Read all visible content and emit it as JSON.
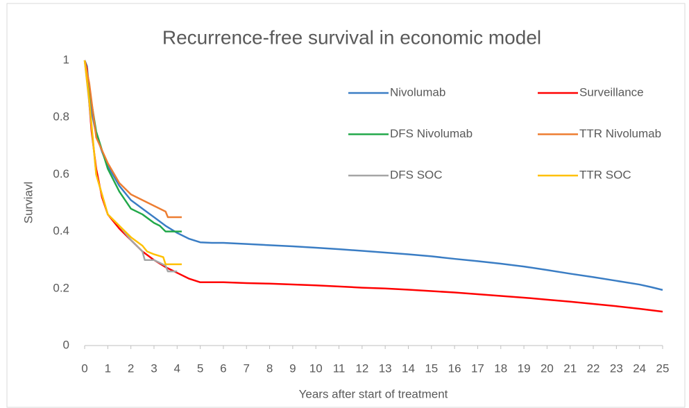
{
  "chart_data": {
    "type": "line",
    "title": "Recurrence-free survival in economic model",
    "x_label": "Years after start of treatment",
    "y_label": "Surviavl",
    "xlim": [
      0,
      25
    ],
    "xticks": [
      0,
      1,
      2,
      3,
      4,
      5,
      6,
      7,
      8,
      9,
      10,
      11,
      12,
      13,
      14,
      15,
      16,
      17,
      18,
      19,
      20,
      21,
      22,
      23,
      24,
      25
    ],
    "ylim": [
      0,
      1
    ],
    "yticks": [
      0,
      0.2,
      0.4,
      0.6,
      0.8,
      1
    ],
    "grid": false,
    "series": [
      {
        "name": "Nivolumab",
        "color": "#3a7dc4",
        "x": [
          0,
          0.1,
          0.2,
          0.3,
          0.5,
          0.75,
          1,
          1.5,
          2,
          2.5,
          3,
          3.5,
          4,
          4.5,
          5,
          5.5,
          6,
          7,
          8,
          9,
          10,
          11,
          12,
          13,
          14,
          15,
          16,
          17,
          18,
          19,
          20,
          21,
          22,
          23,
          24,
          24.5,
          25
        ],
        "values": [
          1,
          0.98,
          0.9,
          0.82,
          0.74,
          0.68,
          0.63,
          0.56,
          0.51,
          0.48,
          0.45,
          0.42,
          0.395,
          0.375,
          0.362,
          0.36,
          0.36,
          0.356,
          0.352,
          0.348,
          0.343,
          0.338,
          0.332,
          0.326,
          0.32,
          0.313,
          0.304,
          0.296,
          0.287,
          0.277,
          0.265,
          0.252,
          0.24,
          0.227,
          0.214,
          0.205,
          0.195
        ]
      },
      {
        "name": "Surveillance",
        "color": "#ff0000",
        "x": [
          0,
          0.1,
          0.2,
          0.3,
          0.5,
          0.75,
          1,
          1.5,
          2,
          2.5,
          3,
          3.5,
          4,
          4.5,
          5,
          6,
          7,
          8,
          9,
          10,
          11,
          12,
          13,
          14,
          15,
          16,
          17,
          18,
          19,
          20,
          21,
          22,
          23,
          24,
          25
        ],
        "values": [
          1,
          0.97,
          0.85,
          0.75,
          0.62,
          0.52,
          0.46,
          0.41,
          0.37,
          0.33,
          0.3,
          0.275,
          0.255,
          0.235,
          0.222,
          0.222,
          0.219,
          0.217,
          0.214,
          0.211,
          0.207,
          0.203,
          0.2,
          0.196,
          0.191,
          0.186,
          0.18,
          0.174,
          0.168,
          0.161,
          0.154,
          0.146,
          0.138,
          0.129,
          0.119
        ]
      },
      {
        "name": "DFS Nivolumab",
        "color": "#22a84a",
        "x": [
          0,
          0.2,
          0.5,
          1,
          1.5,
          2,
          2.5,
          3,
          3.25,
          3.5,
          4,
          4.2
        ],
        "values": [
          1,
          0.9,
          0.75,
          0.62,
          0.54,
          0.48,
          0.46,
          0.43,
          0.42,
          0.4,
          0.4,
          0.4
        ]
      },
      {
        "name": "TTR Nivolumab",
        "color": "#ed7d31",
        "x": [
          0,
          0.2,
          0.5,
          1,
          1.5,
          2,
          2.5,
          3,
          3.5,
          3.6,
          4.2
        ],
        "values": [
          1,
          0.92,
          0.73,
          0.64,
          0.57,
          0.53,
          0.51,
          0.49,
          0.47,
          0.45,
          0.45
        ]
      },
      {
        "name": "DFS SOC",
        "color": "#a5a5a5",
        "x": [
          0,
          0.2,
          0.5,
          1,
          1.5,
          2,
          2.5,
          2.6,
          3,
          3.5,
          3.6,
          4
        ],
        "values": [
          1,
          0.85,
          0.6,
          0.46,
          0.42,
          0.37,
          0.33,
          0.3,
          0.3,
          0.28,
          0.26,
          0.26
        ]
      },
      {
        "name": "TTR SOC",
        "color": "#ffc000",
        "x": [
          0,
          0.2,
          0.5,
          1,
          1.5,
          2,
          2.5,
          2.7,
          3,
          3.4,
          3.5,
          4.2
        ],
        "values": [
          1,
          0.86,
          0.6,
          0.46,
          0.42,
          0.38,
          0.35,
          0.33,
          0.32,
          0.31,
          0.285,
          0.285
        ]
      }
    ]
  }
}
